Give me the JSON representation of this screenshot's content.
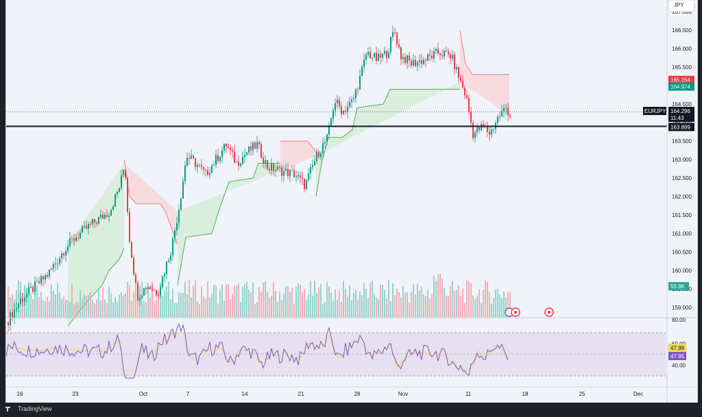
{
  "symbol": "EURJPY",
  "currency": "JPY",
  "countdown": "11:43",
  "brand": "TradingView",
  "colors": {
    "up": "#089981",
    "down": "#f23645",
    "trend_up_fill": "#d6ecd8",
    "trend_down_fill": "#f7d7d9",
    "trend_up_line": "#4caf50",
    "trend_down_line": "#f77c80",
    "rsi": "#7e57c2",
    "rsi_ma": "#f2d65c",
    "rsi_band": "#e6e0f1"
  },
  "price_axis": [
    "167.000",
    "166.500",
    "166.000",
    "165.500",
    "165.000",
    "164.500",
    "164.000",
    "163.500",
    "163.000",
    "162.500",
    "162.000",
    "161.500",
    "161.000",
    "160.500",
    "160.000",
    "159.500",
    "159.000"
  ],
  "price_tags": [
    {
      "id": "tag-165-154",
      "label": "165.154",
      "value": 165.154,
      "color": "#f23645"
    },
    {
      "id": "tag-164-974",
      "label": "164.974",
      "value": 164.974,
      "color": "#089981"
    },
    {
      "id": "tag-last",
      "label": "164.296",
      "value": 164.296,
      "color": "#131722"
    },
    {
      "id": "tag-163-899",
      "label": "163.899",
      "value": 163.899,
      "color": "#131722"
    }
  ],
  "horizontal_line": 163.899,
  "last_price": 164.296,
  "volume_label": "55.9K",
  "rsi_axis": [
    "80.00",
    "60.00",
    "40.00"
  ],
  "rsi_tags": [
    {
      "label": "47.98",
      "value": 47.98,
      "bg": "#f2d65c",
      "fg": "#131722"
    },
    {
      "label": "47.95",
      "value": 47.95,
      "bg": "#7e57c2",
      "fg": "#ffffff"
    }
  ],
  "time_axis": [
    "16",
    "23",
    "Oct",
    "7",
    "14",
    "21",
    "28",
    "Nov",
    "11",
    "18",
    "25",
    "Dec"
  ],
  "chart_data": {
    "type": "candlestick",
    "symbol": "EURJPY",
    "y_range": [
      158.7,
      167.1
    ],
    "rsi_range": [
      20,
      80
    ],
    "rsi_bands": [
      70,
      50,
      30
    ],
    "markers": [
      "economic-event",
      "economic-event",
      "economic-event"
    ]
  }
}
